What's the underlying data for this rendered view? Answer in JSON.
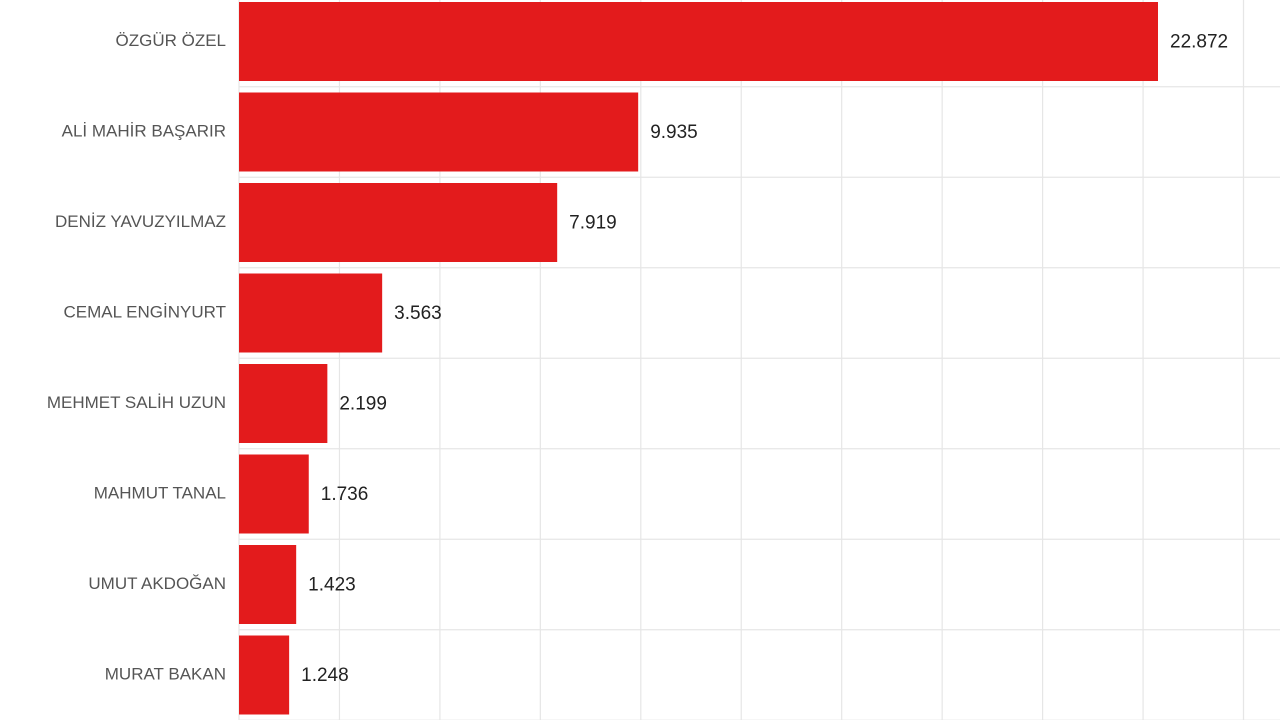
{
  "chart_data": {
    "type": "bar",
    "orientation": "horizontal",
    "categories": [
      "ÖZGÜR ÖZEL",
      "ALİ MAHİR BAŞARIR",
      "DENİZ YAVUZYILMAZ",
      "CEMAL ENGİNYURT",
      "MEHMET SALİH UZUN",
      "MAHMUT TANAL",
      "UMUT AKDOĞAN",
      "MURAT BAKAN"
    ],
    "values": [
      22872,
      9935,
      7919,
      3563,
      2199,
      1736,
      1423,
      1248
    ],
    "value_labels": [
      "22.872",
      "9.935",
      "7.919",
      "3.563",
      "2.199",
      "1.736",
      "1.423",
      "1.248"
    ],
    "title": "",
    "xlabel": "",
    "ylabel": "",
    "xlim": [
      0,
      25000
    ],
    "grid": true,
    "legend": "none"
  },
  "colors": {
    "bar": "#e31b1c",
    "grid": "#e6e6e6",
    "category_text": "#555555",
    "value_text": "#222222",
    "background": "#ffffff"
  }
}
